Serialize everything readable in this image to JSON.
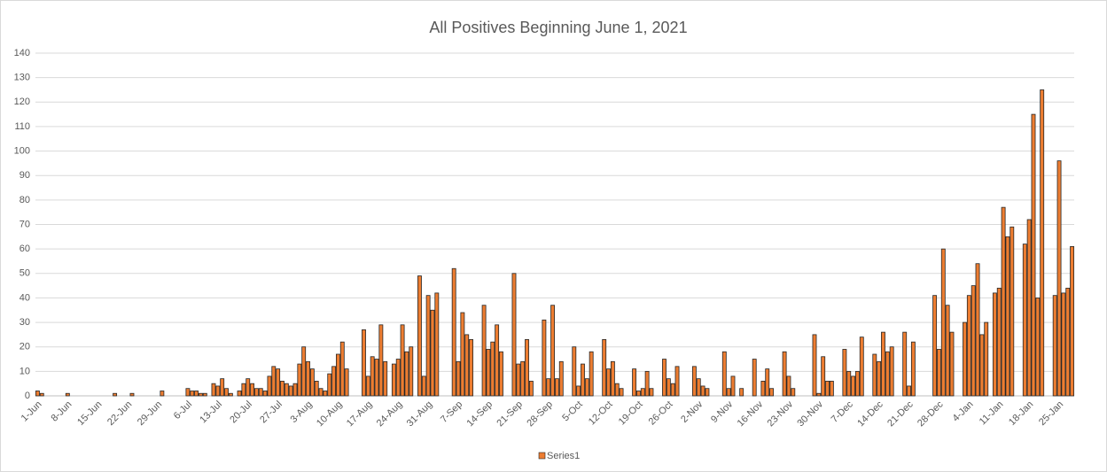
{
  "chart_data": {
    "type": "bar",
    "title": "All Positives Beginning June 1, 2021",
    "categories": [
      "1-Jun",
      null,
      null,
      null,
      null,
      null,
      null,
      "8-Jun",
      null,
      null,
      null,
      null,
      null,
      null,
      "15-Jun",
      null,
      null,
      null,
      null,
      null,
      null,
      "22-Jun",
      null,
      null,
      null,
      null,
      null,
      null,
      "29-Jun",
      null,
      null,
      null,
      null,
      null,
      null,
      "6-Jul",
      null,
      null,
      null,
      null,
      null,
      null,
      "13-Jul",
      null,
      null,
      null,
      null,
      null,
      null,
      "20-Jul",
      null,
      null,
      null,
      null,
      null,
      null,
      "27-Jul",
      null,
      null,
      null,
      null,
      null,
      null,
      "3-Aug",
      null,
      null,
      null,
      null,
      null,
      null,
      "10-Aug",
      null,
      null,
      null,
      null,
      null,
      null,
      "17-Aug",
      null,
      null,
      null,
      null,
      null,
      null,
      "24-Aug",
      null,
      null,
      null,
      null,
      null,
      null,
      "31-Aug",
      null,
      null,
      null,
      null,
      null,
      null,
      "7-Sep",
      null,
      null,
      null,
      null,
      null,
      null,
      "14-Sep",
      null,
      null,
      null,
      null,
      null,
      null,
      "21-Sep",
      null,
      null,
      null,
      null,
      null,
      null,
      "28-Sep",
      null,
      null,
      null,
      null,
      null,
      null,
      "5-Oct",
      null,
      null,
      null,
      null,
      null,
      null,
      "12-Oct",
      null,
      null,
      null,
      null,
      null,
      null,
      "19-Oct",
      null,
      null,
      null,
      null,
      null,
      null,
      "26-Oct",
      null,
      null,
      null,
      null,
      null,
      null,
      "2-Nov",
      null,
      null,
      null,
      null,
      null,
      null,
      "9-Nov",
      null,
      null,
      null,
      null,
      null,
      null,
      "16-Nov",
      null,
      null,
      null,
      null,
      null,
      null,
      "23-Nov",
      null,
      null,
      null,
      null,
      null,
      null,
      "30-Nov",
      null,
      null,
      null,
      null,
      null,
      null,
      "7-Dec",
      null,
      null,
      null,
      null,
      null,
      null,
      "14-Dec",
      null,
      null,
      null,
      null,
      null,
      null,
      "21-Dec",
      null,
      null,
      null,
      null,
      null,
      null,
      "28-Dec",
      null,
      null,
      null,
      null,
      null,
      null,
      "4-Jan",
      null,
      null,
      null,
      null,
      null,
      null,
      "11-Jan",
      null,
      null,
      null,
      null,
      null,
      null,
      "18-Jan",
      null,
      null,
      null,
      null,
      null,
      null,
      "25-Jan",
      null,
      null,
      null
    ],
    "series": [
      {
        "name": "Series1",
        "color": "#ed7d31",
        "values": [
          2,
          1,
          0,
          0,
          0,
          0,
          0,
          1,
          0,
          0,
          0,
          0,
          0,
          0,
          0,
          0,
          0,
          0,
          1,
          0,
          0,
          0,
          1,
          0,
          0,
          0,
          0,
          0,
          0,
          2,
          0,
          0,
          0,
          0,
          0,
          3,
          2,
          2,
          1,
          1,
          0,
          5,
          4,
          7,
          3,
          1,
          0,
          2,
          5,
          7,
          5,
          3,
          3,
          2,
          8,
          12,
          11,
          6,
          5,
          4,
          5,
          13,
          20,
          14,
          11,
          6,
          3,
          2,
          9,
          12,
          17,
          22,
          11,
          0,
          0,
          0,
          27,
          8,
          16,
          15,
          29,
          14,
          0,
          13,
          15,
          29,
          18,
          20,
          0,
          49,
          8,
          41,
          35,
          42,
          0,
          0,
          0,
          52,
          14,
          34,
          25,
          23,
          0,
          0,
          37,
          19,
          22,
          29,
          18,
          0,
          0,
          50,
          13,
          14,
          23,
          6,
          0,
          0,
          31,
          7,
          37,
          7,
          14,
          0,
          0,
          20,
          4,
          13,
          7,
          18,
          0,
          0,
          23,
          11,
          14,
          5,
          3,
          0,
          0,
          11,
          2,
          3,
          10,
          3,
          0,
          0,
          15,
          7,
          5,
          12,
          0,
          0,
          0,
          12,
          7,
          4,
          3,
          0,
          0,
          0,
          18,
          3,
          8,
          0,
          3,
          0,
          0,
          15,
          0,
          6,
          11,
          3,
          0,
          0,
          18,
          8,
          3,
          0,
          0,
          0,
          0,
          25,
          1,
          16,
          6,
          6,
          0,
          0,
          19,
          10,
          8,
          10,
          24,
          0,
          0,
          17,
          14,
          26,
          18,
          20,
          0,
          0,
          26,
          4,
          22,
          0,
          0,
          0,
          0,
          41,
          19,
          60,
          37,
          26,
          0,
          0,
          30,
          41,
          45,
          54,
          25,
          30,
          0,
          42,
          44,
          77,
          65,
          69,
          0,
          0,
          62,
          72,
          115,
          40,
          125,
          0,
          0,
          41,
          96,
          42,
          44,
          61
        ]
      }
    ],
    "ylim": [
      0,
      140
    ],
    "yticks": [
      0,
      10,
      20,
      30,
      40,
      50,
      60,
      70,
      80,
      90,
      100,
      110,
      120,
      130,
      140
    ],
    "grid": true
  }
}
